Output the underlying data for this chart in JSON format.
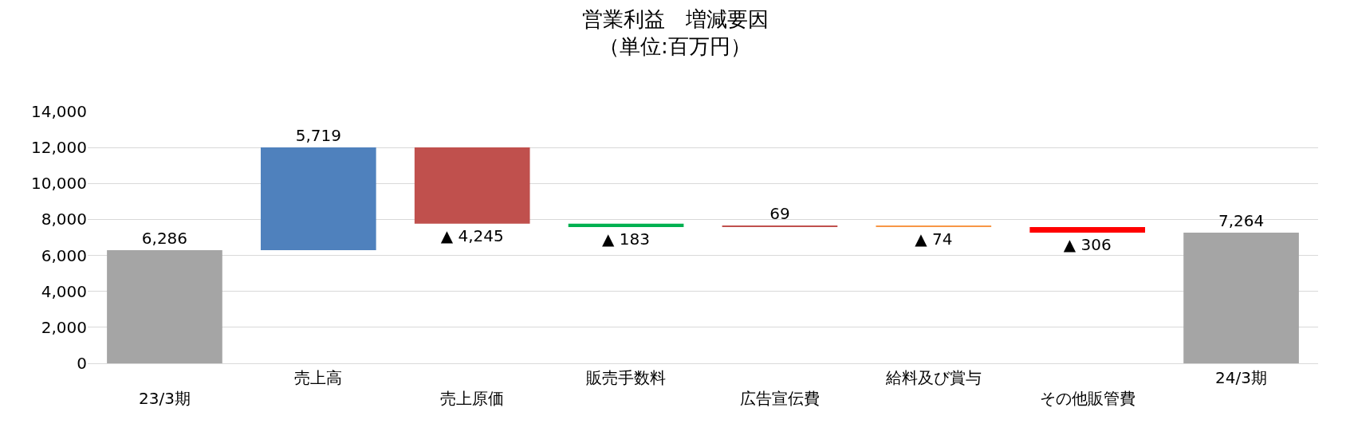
{
  "chart_data": {
    "type": "bar",
    "title": "営業利益　増減要因",
    "subtitle": "（単位:百万円）",
    "categories": [
      "23/3期",
      "売上高",
      "売上原価",
      "販売手数料",
      "広告宣伝費",
      "給料及び賞与",
      "その他販管費",
      "24/3期"
    ],
    "values": [
      6286,
      5719,
      -4245,
      -183,
      69,
      -74,
      -306,
      7264
    ],
    "base": [
      0,
      6286,
      12005,
      7760,
      7577,
      7646,
      7572,
      0
    ],
    "colors": [
      "#a5a5a5",
      "#4f81bd",
      "#c0504d",
      "#00b050",
      "#c0504d",
      "#f79646",
      "#ff0000",
      "#a5a5a5"
    ],
    "value_labels": [
      "6,286",
      "5,719",
      "▲ 4,245",
      "▲ 183",
      "69",
      "▲ 74",
      "▲ 306",
      "7,264"
    ],
    "ylim": [
      0,
      14000
    ],
    "yticks": [
      0,
      {
        "value": 2000,
        "label": "2,000"
      },
      {
        "value": 4000,
        "label": "4,000"
      },
      {
        "value": 6000,
        "label": "6,000"
      },
      {
        "value": 8000,
        "label": "8,000"
      },
      {
        "value": 10000,
        "label": "10,000"
      },
      {
        "value": 12000,
        "label": "12,000"
      },
      {
        "value": 14000,
        "label": "14,000"
      }
    ],
    "grid": "y",
    "legend": false
  }
}
